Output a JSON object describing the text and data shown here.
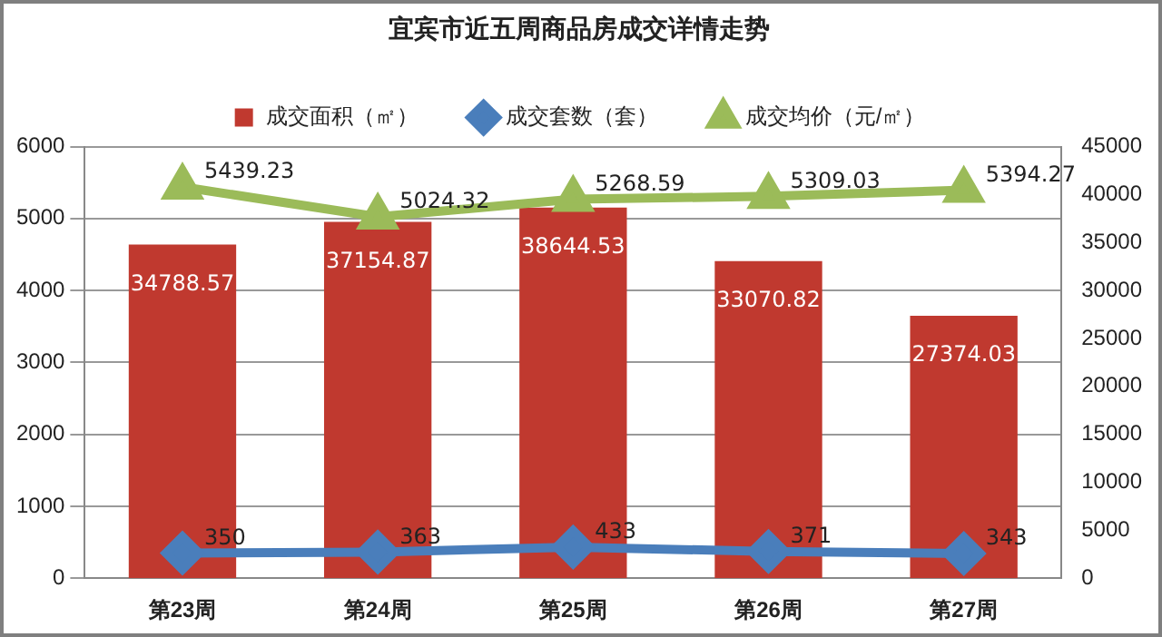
{
  "chart_data": {
    "type": "bar",
    "title": "宜宾市近五周商品房成交详情走势",
    "categories": [
      "第23周",
      "第24周",
      "第25周",
      "第26周",
      "第27周"
    ],
    "series": [
      {
        "name": "成交面积（㎡）",
        "axis": "y2",
        "color": "#c0392f",
        "values": [
          34788.57,
          37154.87,
          38644.53,
          33070.82,
          27374.03
        ]
      },
      {
        "name": "成交套数（套）",
        "type": "line",
        "color": "#4a7ebb",
        "marker": "diamond",
        "values": [
          350,
          363,
          433,
          371,
          343
        ]
      },
      {
        "name": "成交均价（元/㎡）",
        "type": "line",
        "color": "#9bbb59",
        "marker": "triangle",
        "values": [
          5439.23,
          5024.32,
          5268.59,
          5309.03,
          5394.27
        ]
      }
    ],
    "ylim": [
      0,
      6000
    ],
    "yticks": [
      0,
      1000,
      2000,
      3000,
      4000,
      5000,
      6000
    ],
    "y2lim": [
      0,
      45000
    ],
    "y2ticks": [
      0,
      5000,
      10000,
      15000,
      20000,
      25000,
      30000,
      35000,
      40000,
      45000
    ],
    "grid": "y",
    "legend": "top",
    "data_labels": true
  }
}
